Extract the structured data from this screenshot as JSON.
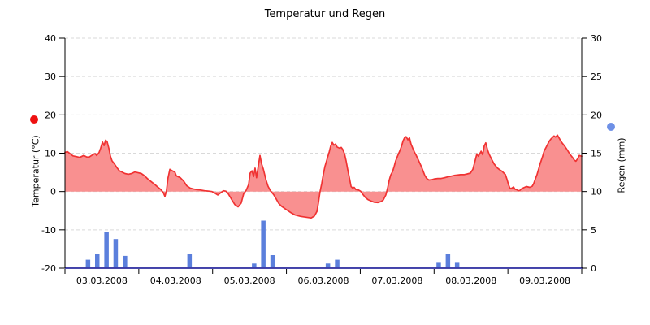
{
  "title": "Temperatur und Regen",
  "colors": {
    "temp_line": "#f03232",
    "temp_fill": "#f99090",
    "temp_legend_dot": "#ee1111",
    "rain_bar": "#5b7fdc",
    "rain_legend_dot": "#6e90e6",
    "grid": "#d9d9d9",
    "axis_black": "#000000",
    "axis_navy": "#2e2ea0",
    "axis_lightblue": "#b8c4f0",
    "text": "#000000"
  },
  "chart_data": {
    "type": "mixed",
    "title": "Temperatur und Regen",
    "x_axis": {
      "unit": "hours since 03.03.2008 00:00",
      "range_hours": [
        0,
        168
      ],
      "day_labels": [
        "03.03.2008",
        "04.03.2008",
        "05.03.2008",
        "06.03.2008",
        "07.03.2008",
        "08.03.2008",
        "09.03.2008"
      ],
      "tick_every_hours": 24
    },
    "y_left": {
      "label": "Temperatur (°C)",
      "min": -20,
      "max": 40,
      "ticks": [
        40,
        30,
        20,
        10,
        0,
        -10,
        -20
      ]
    },
    "y_right": {
      "label": "Regen (mm)",
      "min": 0,
      "max": 30,
      "ticks": [
        30,
        25,
        20,
        15,
        10,
        5,
        0
      ]
    },
    "grid_levels_temp": [
      40,
      30,
      20,
      10,
      0,
      -10
    ],
    "series": [
      {
        "name": "Temperatur",
        "type": "area",
        "axis": "left",
        "points": [
          [
            0.0,
            10.2
          ],
          [
            0.8,
            10.4
          ],
          [
            1.8,
            9.8
          ],
          [
            2.6,
            9.3
          ],
          [
            3.7,
            9.1
          ],
          [
            4.8,
            8.9
          ],
          [
            6.1,
            9.4
          ],
          [
            7.1,
            9.0
          ],
          [
            7.9,
            9.0
          ],
          [
            9.0,
            9.6
          ],
          [
            9.8,
            9.9
          ],
          [
            10.3,
            9.4
          ],
          [
            11.1,
            10.2
          ],
          [
            11.6,
            11.3
          ],
          [
            12.2,
            12.9
          ],
          [
            12.7,
            12.0
          ],
          [
            13.2,
            13.4
          ],
          [
            13.7,
            13.0
          ],
          [
            14.3,
            11.2
          ],
          [
            14.8,
            9.2
          ],
          [
            15.3,
            8.0
          ],
          [
            16.1,
            7.2
          ],
          [
            16.9,
            6.2
          ],
          [
            17.7,
            5.4
          ],
          [
            18.5,
            5.1
          ],
          [
            19.5,
            4.7
          ],
          [
            20.6,
            4.5
          ],
          [
            21.7,
            4.7
          ],
          [
            22.7,
            5.1
          ],
          [
            23.8,
            4.9
          ],
          [
            24.8,
            4.7
          ],
          [
            25.9,
            4.1
          ],
          [
            26.9,
            3.3
          ],
          [
            28.0,
            2.6
          ],
          [
            29.1,
            1.9
          ],
          [
            30.1,
            1.2
          ],
          [
            31.2,
            0.5
          ],
          [
            32.0,
            -0.3
          ],
          [
            32.5,
            -1.3
          ],
          [
            33.0,
            0.2
          ],
          [
            33.5,
            3.5
          ],
          [
            34.1,
            5.8
          ],
          [
            34.9,
            5.4
          ],
          [
            35.7,
            5.1
          ],
          [
            36.2,
            4.1
          ],
          [
            37.5,
            3.6
          ],
          [
            38.6,
            2.7
          ],
          [
            39.6,
            1.5
          ],
          [
            40.7,
            0.9
          ],
          [
            41.7,
            0.7
          ],
          [
            42.8,
            0.5
          ],
          [
            44.1,
            0.4
          ],
          [
            45.4,
            0.2
          ],
          [
            46.8,
            0.1
          ],
          [
            47.8,
            0.0
          ],
          [
            48.9,
            -0.5
          ],
          [
            49.7,
            -0.9
          ],
          [
            50.7,
            -0.3
          ],
          [
            51.5,
            0.2
          ],
          [
            52.3,
            0.1
          ],
          [
            53.1,
            -0.6
          ],
          [
            54.2,
            -2.1
          ],
          [
            55.2,
            -3.4
          ],
          [
            56.3,
            -4.0
          ],
          [
            57.3,
            -3.0
          ],
          [
            58.1,
            -0.6
          ],
          [
            58.9,
            0.3
          ],
          [
            59.7,
            1.8
          ],
          [
            60.2,
            4.8
          ],
          [
            60.8,
            5.4
          ],
          [
            61.3,
            3.9
          ],
          [
            61.8,
            6.1
          ],
          [
            62.3,
            3.6
          ],
          [
            62.9,
            6.9
          ],
          [
            63.4,
            9.4
          ],
          [
            63.9,
            7.3
          ],
          [
            64.5,
            5.8
          ],
          [
            65.3,
            3.2
          ],
          [
            66.0,
            1.4
          ],
          [
            66.8,
            0.2
          ],
          [
            67.9,
            -0.9
          ],
          [
            68.7,
            -2.0
          ],
          [
            69.5,
            -3.1
          ],
          [
            70.5,
            -3.9
          ],
          [
            71.9,
            -4.7
          ],
          [
            73.2,
            -5.4
          ],
          [
            74.7,
            -6.1
          ],
          [
            76.6,
            -6.5
          ],
          [
            78.4,
            -6.7
          ],
          [
            80.0,
            -6.9
          ],
          [
            81.1,
            -6.4
          ],
          [
            81.9,
            -5.2
          ],
          [
            82.4,
            -3.0
          ],
          [
            82.9,
            -0.2
          ],
          [
            83.5,
            2.2
          ],
          [
            84.0,
            4.5
          ],
          [
            84.5,
            6.5
          ],
          [
            85.3,
            8.7
          ],
          [
            85.9,
            10.3
          ],
          [
            86.4,
            11.9
          ],
          [
            86.9,
            12.8
          ],
          [
            87.4,
            12.1
          ],
          [
            88.0,
            12.4
          ],
          [
            88.5,
            11.6
          ],
          [
            89.3,
            11.3
          ],
          [
            89.8,
            11.5
          ],
          [
            90.3,
            11.0
          ],
          [
            90.9,
            9.8
          ],
          [
            91.4,
            8.0
          ],
          [
            91.9,
            5.8
          ],
          [
            92.5,
            3.4
          ],
          [
            93.0,
            1.3
          ],
          [
            93.5,
            0.9
          ],
          [
            94.0,
            1.1
          ],
          [
            94.6,
            0.5
          ],
          [
            95.4,
            0.4
          ],
          [
            96.1,
            0.1
          ],
          [
            96.9,
            -0.8
          ],
          [
            97.7,
            -1.6
          ],
          [
            98.5,
            -2.1
          ],
          [
            99.6,
            -2.5
          ],
          [
            100.6,
            -2.8
          ],
          [
            101.7,
            -2.9
          ],
          [
            102.8,
            -2.6
          ],
          [
            103.5,
            -2.2
          ],
          [
            104.3,
            -0.9
          ],
          [
            104.9,
            0.9
          ],
          [
            105.4,
            2.9
          ],
          [
            105.9,
            4.3
          ],
          [
            106.5,
            5.2
          ],
          [
            107.0,
            6.5
          ],
          [
            107.5,
            8.0
          ],
          [
            108.3,
            9.6
          ],
          [
            108.8,
            10.5
          ],
          [
            109.4,
            11.8
          ],
          [
            109.9,
            13.2
          ],
          [
            110.4,
            14.0
          ],
          [
            110.9,
            14.3
          ],
          [
            111.5,
            13.5
          ],
          [
            112.0,
            14.0
          ],
          [
            112.5,
            12.4
          ],
          [
            113.1,
            11.2
          ],
          [
            113.6,
            10.3
          ],
          [
            114.1,
            9.6
          ],
          [
            114.9,
            8.2
          ],
          [
            115.4,
            7.3
          ],
          [
            116.0,
            6.3
          ],
          [
            116.5,
            5.2
          ],
          [
            117.0,
            4.2
          ],
          [
            117.6,
            3.4
          ],
          [
            118.3,
            3.0
          ],
          [
            119.4,
            3.1
          ],
          [
            120.2,
            3.3
          ],
          [
            121.2,
            3.4
          ],
          [
            122.3,
            3.4
          ],
          [
            123.4,
            3.6
          ],
          [
            124.4,
            3.8
          ],
          [
            125.5,
            4.0
          ],
          [
            126.5,
            4.2
          ],
          [
            127.6,
            4.3
          ],
          [
            128.6,
            4.4
          ],
          [
            129.7,
            4.4
          ],
          [
            130.8,
            4.6
          ],
          [
            131.8,
            4.8
          ],
          [
            132.6,
            5.8
          ],
          [
            133.4,
            8.2
          ],
          [
            133.9,
            9.8
          ],
          [
            134.4,
            9.2
          ],
          [
            135.3,
            10.5
          ],
          [
            135.8,
            9.6
          ],
          [
            136.3,
            11.9
          ],
          [
            136.8,
            12.7
          ],
          [
            137.4,
            10.8
          ],
          [
            137.9,
            9.7
          ],
          [
            138.7,
            8.4
          ],
          [
            139.5,
            7.2
          ],
          [
            140.5,
            6.2
          ],
          [
            141.3,
            5.7
          ],
          [
            142.1,
            5.3
          ],
          [
            143.2,
            4.4
          ],
          [
            143.7,
            3.2
          ],
          [
            144.2,
            1.8
          ],
          [
            144.7,
            0.8
          ],
          [
            145.3,
            0.9
          ],
          [
            145.8,
            1.2
          ],
          [
            146.3,
            0.6
          ],
          [
            146.8,
            0.5
          ],
          [
            147.4,
            0.2
          ],
          [
            147.9,
            0.3
          ],
          [
            148.4,
            0.7
          ],
          [
            149.2,
            1.0
          ],
          [
            150.0,
            1.3
          ],
          [
            151.1,
            1.1
          ],
          [
            151.9,
            1.4
          ],
          [
            152.4,
            2.1
          ],
          [
            152.9,
            3.2
          ],
          [
            153.5,
            4.5
          ],
          [
            154.0,
            5.9
          ],
          [
            154.5,
            7.3
          ],
          [
            155.3,
            9.2
          ],
          [
            155.8,
            10.6
          ],
          [
            156.4,
            11.5
          ],
          [
            156.9,
            12.3
          ],
          [
            157.4,
            13.1
          ],
          [
            158.0,
            13.7
          ],
          [
            158.5,
            14.1
          ],
          [
            159.0,
            14.5
          ],
          [
            159.5,
            14.2
          ],
          [
            160.1,
            14.7
          ],
          [
            160.6,
            14.0
          ],
          [
            161.1,
            13.3
          ],
          [
            161.6,
            12.7
          ],
          [
            162.4,
            11.9
          ],
          [
            163.0,
            11.2
          ],
          [
            163.8,
            10.2
          ],
          [
            164.3,
            9.6
          ],
          [
            165.1,
            8.8
          ],
          [
            165.6,
            8.2
          ],
          [
            166.1,
            7.9
          ],
          [
            166.7,
            8.6
          ],
          [
            167.2,
            9.4
          ],
          [
            168.0,
            9.2
          ]
        ]
      },
      {
        "name": "Regen",
        "type": "bar",
        "axis": "right",
        "points": [
          [
            7.5,
            1.1
          ],
          [
            10.5,
            1.8
          ],
          [
            13.5,
            4.7
          ],
          [
            16.5,
            3.8
          ],
          [
            19.5,
            1.6
          ],
          [
            40.5,
            1.8
          ],
          [
            61.5,
            0.6
          ],
          [
            64.5,
            6.2
          ],
          [
            67.5,
            1.7
          ],
          [
            85.5,
            0.6
          ],
          [
            88.5,
            1.1
          ],
          [
            121.5,
            0.7
          ],
          [
            124.5,
            1.8
          ],
          [
            127.5,
            0.7
          ]
        ]
      }
    ]
  }
}
